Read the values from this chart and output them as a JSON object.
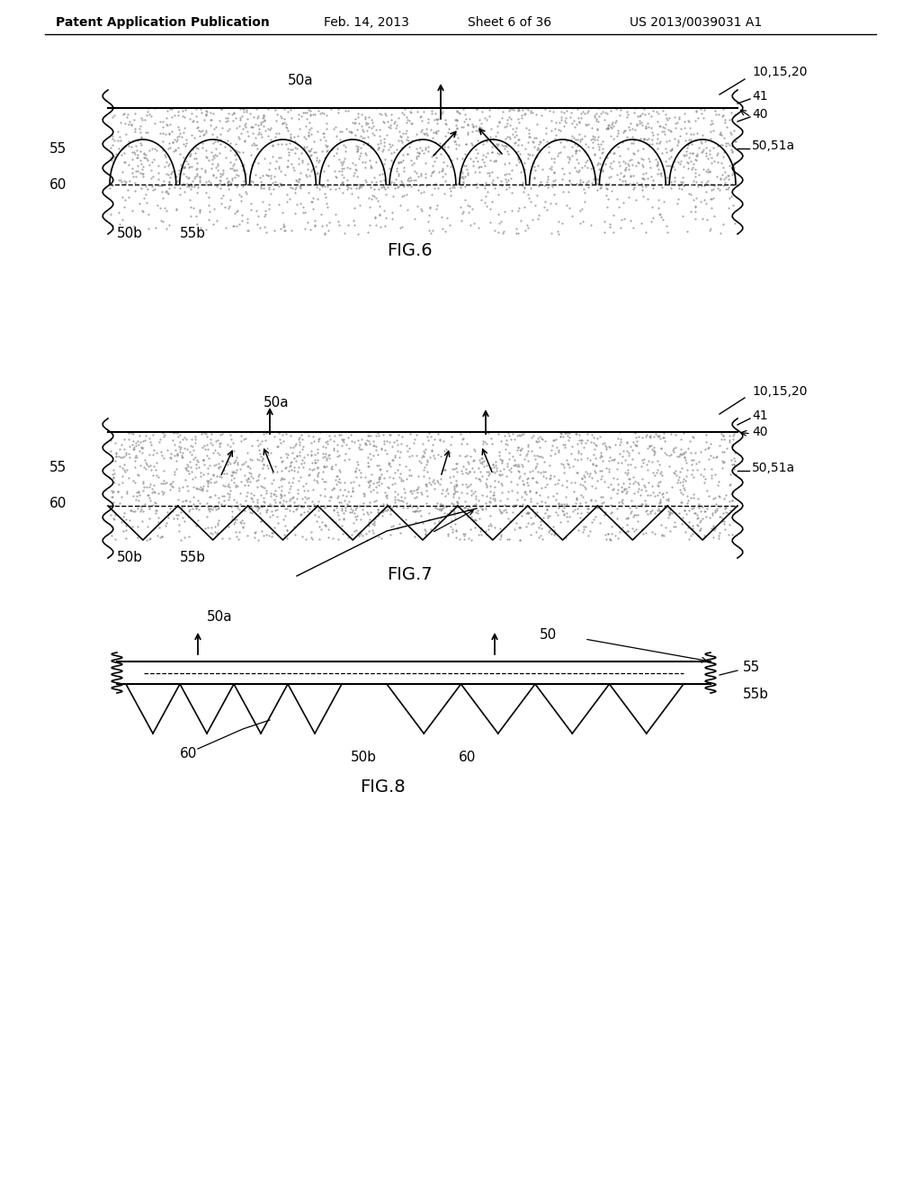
{
  "bg_color": "#ffffff",
  "header_text": "Patent Application Publication",
  "header_date": "Feb. 14, 2013",
  "header_sheet": "Sheet 6 of 36",
  "header_patent": "US 2013/0039031 A1",
  "fig6_label": "FIG.6",
  "fig7_label": "FIG.7",
  "fig8_label": "FIG.8",
  "line_color": "#000000",
  "dot_color": "#aaaaaa",
  "dot_density": 800
}
